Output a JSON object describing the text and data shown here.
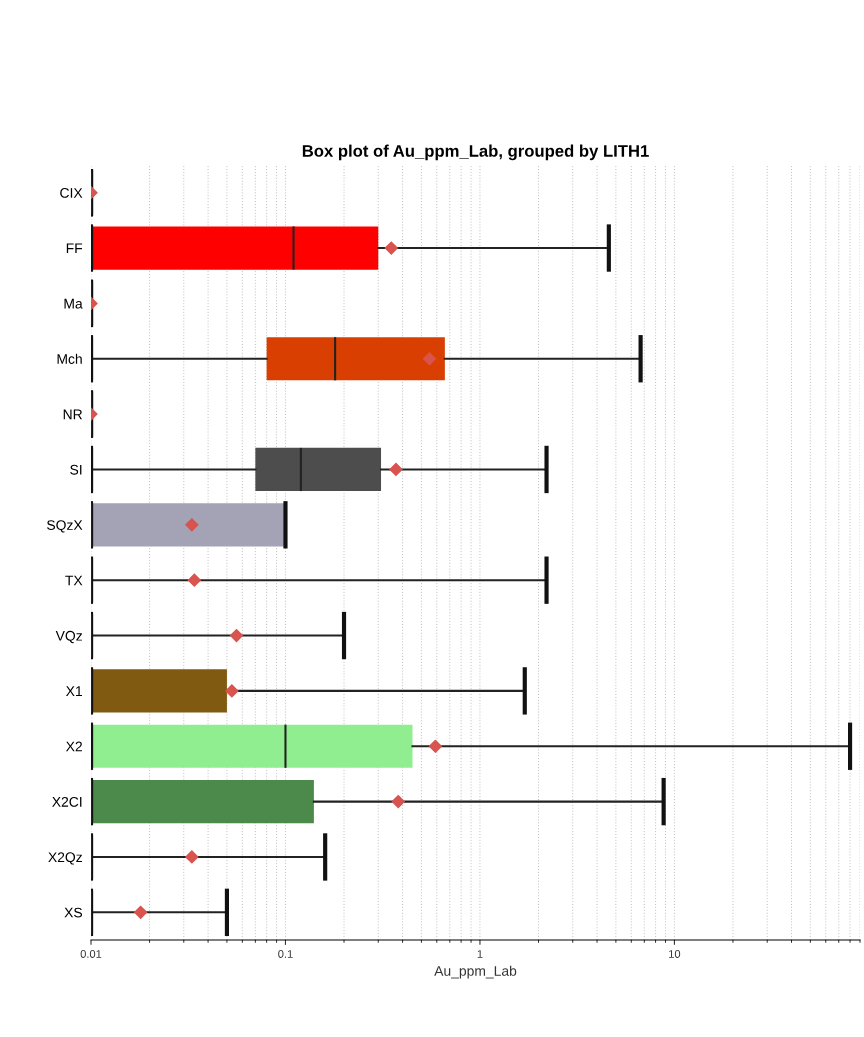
{
  "chart_data": {
    "type": "box",
    "title": "Box plot of Au_ppm_Lab, grouped by LITH1",
    "xlabel": "Au_ppm_Lab",
    "orientation": "horizontal",
    "log": "x",
    "grid": "x",
    "categories": [
      "CIX",
      "FF",
      "Ma",
      "Mch",
      "NR",
      "SI",
      "SQzX",
      "TX",
      "VQz",
      "X1",
      "X2",
      "X2CI",
      "X2Qz",
      "XS"
    ],
    "colors": [
      null,
      "#ff0000",
      null,
      "#d93f00",
      null,
      "#4d4d4d",
      "#a3a3b5",
      null,
      null,
      "#805a10",
      "#90ee90",
      "#4b8a4b",
      null,
      null
    ],
    "boxes": [
      {
        "low": 0.01,
        "q1": 0.01,
        "median": 0.01,
        "q3": 0.01,
        "high": 0.01,
        "mean": 0.01
      },
      {
        "low": 0.01,
        "q1": 0.01,
        "median": 0.11,
        "q3": 0.3,
        "high": 4.6,
        "mean": 0.35
      },
      {
        "low": 0.01,
        "q1": 0.01,
        "median": 0.01,
        "q3": 0.01,
        "high": 0.01,
        "mean": 0.01
      },
      {
        "low": 0.01,
        "q1": 0.08,
        "median": 0.18,
        "q3": 0.66,
        "high": 6.7,
        "mean": 0.55
      },
      {
        "low": 0.01,
        "q1": 0.01,
        "median": 0.01,
        "q3": 0.01,
        "high": 0.01,
        "mean": 0.01
      },
      {
        "low": 0.01,
        "q1": 0.07,
        "median": 0.12,
        "q3": 0.31,
        "high": 2.2,
        "mean": 0.37
      },
      {
        "low": 0.01,
        "q1": 0.01,
        "median": 0.01,
        "q3": 0.1,
        "high": 0.1,
        "mean": 0.033
      },
      {
        "low": 0.01,
        "q1": 0.01,
        "median": 0.01,
        "q3": 0.01,
        "high": 2.2,
        "mean": 0.034
      },
      {
        "low": 0.01,
        "q1": 0.01,
        "median": 0.01,
        "q3": 0.01,
        "high": 0.2,
        "mean": 0.056
      },
      {
        "low": 0.01,
        "q1": 0.01,
        "median": 0.01,
        "q3": 0.05,
        "high": 1.7,
        "mean": 0.053
      },
      {
        "low": 0.01,
        "q1": 0.01,
        "median": 0.1,
        "q3": 0.45,
        "high": 80,
        "mean": 0.59
      },
      {
        "low": 0.01,
        "q1": 0.01,
        "median": 0.01,
        "q3": 0.14,
        "high": 8.8,
        "mean": 0.38
      },
      {
        "low": 0.01,
        "q1": 0.01,
        "median": 0.01,
        "q3": 0.01,
        "high": 0.16,
        "mean": 0.033
      },
      {
        "low": 0.01,
        "q1": 0.01,
        "median": 0.01,
        "q3": 0.01,
        "high": 0.05,
        "mean": 0.018
      }
    ],
    "marker": "diamond",
    "xlim": [
      0.01,
      90
    ],
    "xticks": [
      0.01,
      0.1,
      1,
      10
    ]
  }
}
